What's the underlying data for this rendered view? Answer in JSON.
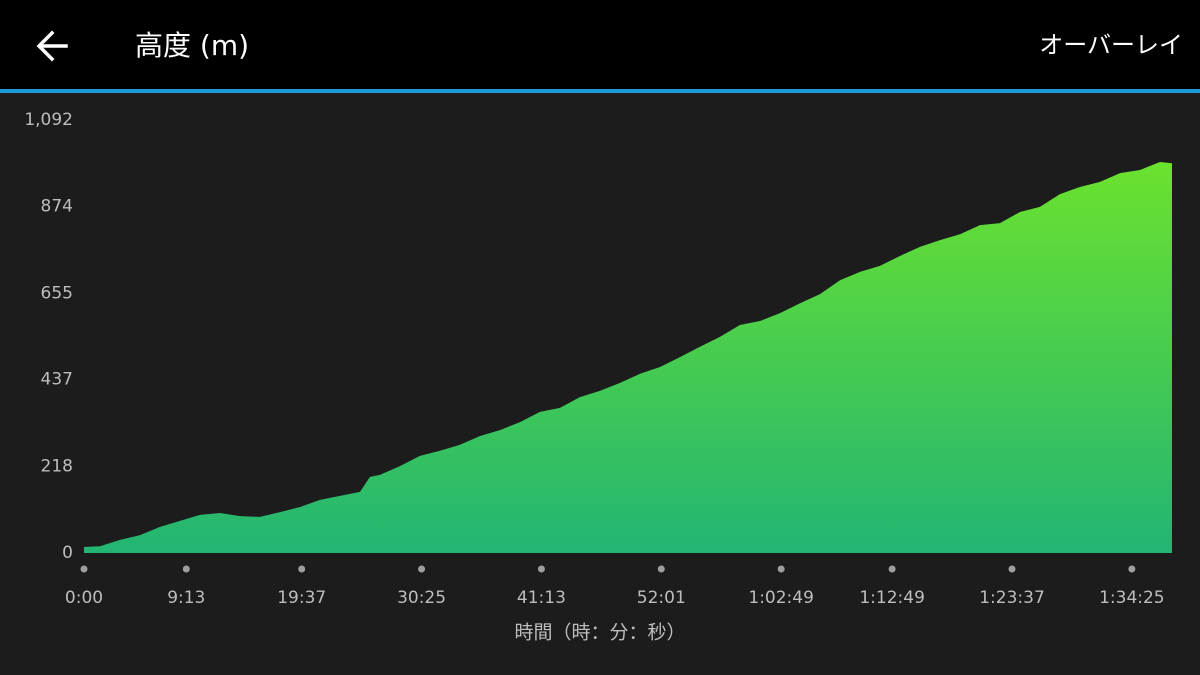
{
  "header": {
    "title": "高度 (m)",
    "action": "オーバーレイ"
  },
  "chart_data": {
    "type": "area",
    "x_label": "時間（時：分：秒）",
    "x": [
      0,
      86,
      195,
      303,
      411,
      519,
      627,
      735,
      843,
      951,
      1060,
      1168,
      1276,
      1384,
      1492,
      1546,
      1600,
      1708,
      1816,
      1925,
      2033,
      2141,
      2249,
      2357,
      2465,
      2573,
      2681,
      2789,
      2898,
      3006,
      3114,
      3222,
      3330,
      3438,
      3546,
      3655,
      3763,
      3871,
      3979,
      4087,
      4195,
      4303,
      4411,
      4519,
      4628,
      4736,
      4844,
      4952,
      5060,
      5168,
      5276,
      5384,
      5493,
      5601,
      5709,
      5817,
      5882
    ],
    "values": [
      15,
      17,
      33,
      45,
      66,
      81,
      96,
      101,
      93,
      91,
      103,
      116,
      134,
      144,
      154,
      192,
      197,
      219,
      245,
      258,
      273,
      295,
      310,
      330,
      356,
      366,
      393,
      409,
      429,
      452,
      469,
      494,
      520,
      545,
      575,
      585,
      605,
      630,
      653,
      688,
      709,
      724,
      749,
      772,
      789,
      804,
      827,
      832,
      860,
      873,
      905,
      923,
      936,
      958,
      966,
      986,
      983
    ],
    "color": "#6be22e",
    "color_bottom": "#22b573",
    "xlim": [
      0,
      5882
    ],
    "xticks": [
      {
        "value": 0,
        "label": "0:00"
      },
      {
        "value": 553,
        "label": "9:13"
      },
      {
        "value": 1177,
        "label": "19:37"
      },
      {
        "value": 1825,
        "label": "30:25"
      },
      {
        "value": 2473,
        "label": "41:13"
      },
      {
        "value": 3121,
        "label": "52:01"
      },
      {
        "value": 3769,
        "label": "1:02:49"
      },
      {
        "value": 4369,
        "label": "1:12:49"
      },
      {
        "value": 5017,
        "label": "1:23:37"
      },
      {
        "value": 5665,
        "label": "1:34:25"
      }
    ],
    "ylim": [
      0,
      1092
    ],
    "yticks": [
      0,
      218,
      437,
      655,
      874,
      {
        "value": 1092,
        "label": "1,092"
      }
    ]
  }
}
